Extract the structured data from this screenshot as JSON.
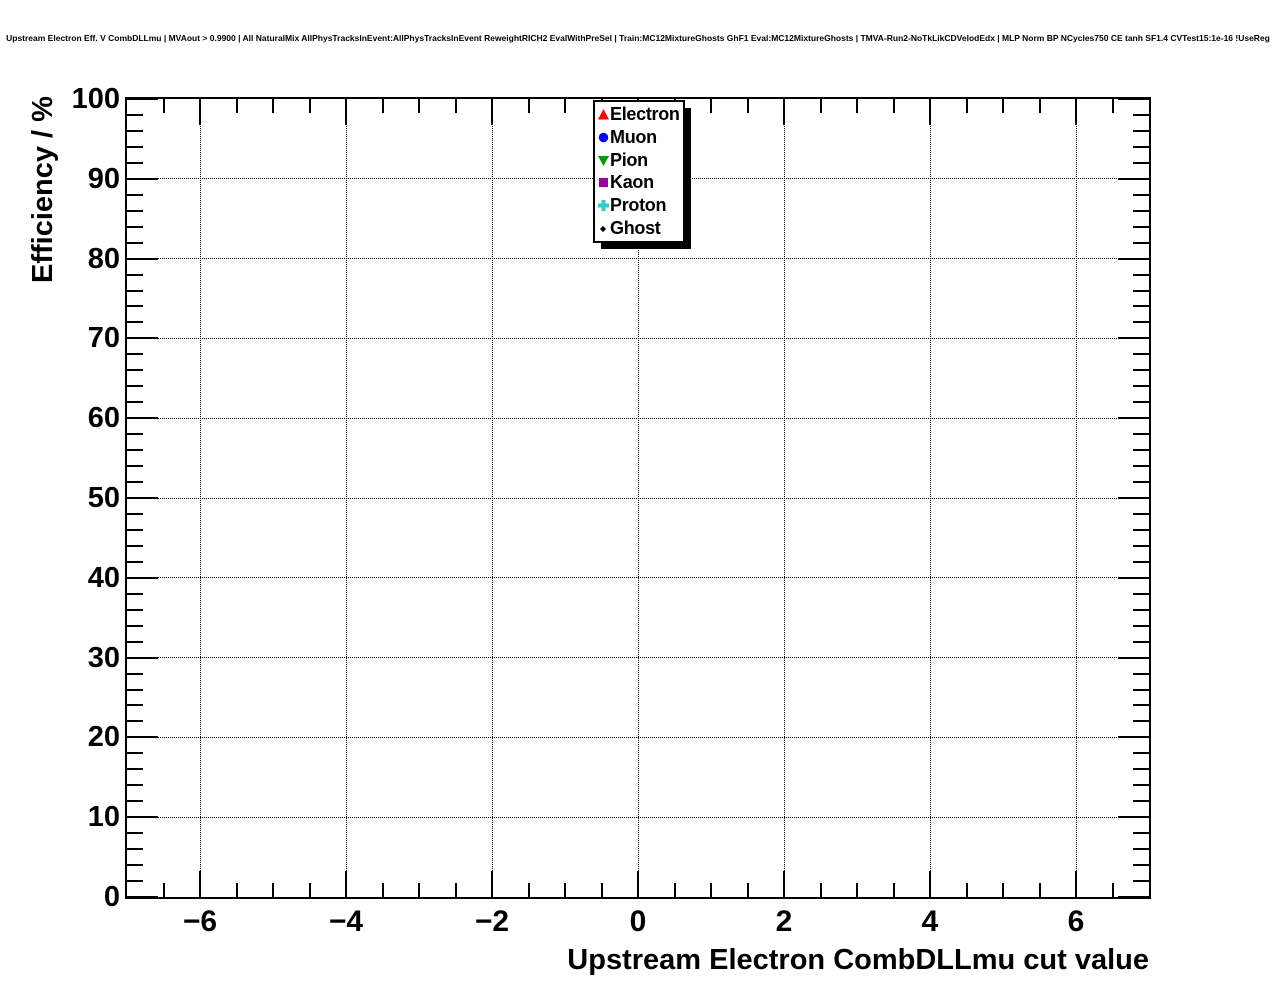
{
  "chart_data": {
    "type": "scatter",
    "title": "Upstream Electron Eff. V CombDLLmu | MVAout > 0.9900 | All NaturalMix AllPhysTracksInEvent:AllPhysTracksInEvent ReweightRICH2 EvalWithPreSel | Train:MC12MixtureGhosts GhF1 Eval:MC12MixtureGhosts | TMVA-Run2-NoTkLikCDVelodEdx | MLP Norm BP NCycles750 CE tanh SF1.4 CVTest15:1e-16 !UseReg",
    "xlabel": "Upstream Electron CombDLLmu cut value",
    "ylabel": "Efficiency / %",
    "xlim": [
      -7,
      7
    ],
    "ylim": [
      0,
      100
    ],
    "x_major_ticks": [
      -6,
      -4,
      -2,
      0,
      2,
      4,
      6
    ],
    "x_tick_labels": [
      "−6",
      "−4",
      "−2",
      "0",
      "2",
      "4",
      "6"
    ],
    "x_minor_tick_step": 0.5,
    "y_major_ticks": [
      0,
      10,
      20,
      30,
      40,
      50,
      60,
      70,
      80,
      90,
      100
    ],
    "y_tick_labels": [
      "0",
      "10",
      "20",
      "30",
      "40",
      "50",
      "60",
      "70",
      "80",
      "90",
      "100"
    ],
    "y_minor_tick_step": 2,
    "grid": "dotted lines at every major tick",
    "legend": {
      "position": "top-center",
      "entries": [
        {
          "label": "Electron",
          "marker": "triangle-up",
          "color": "#ff0000"
        },
        {
          "label": "Muon",
          "marker": "circle",
          "color": "#0000ff"
        },
        {
          "label": "Pion",
          "marker": "triangle-down",
          "color": "#009900"
        },
        {
          "label": "Kaon",
          "marker": "square",
          "color": "#990099"
        },
        {
          "label": "Proton",
          "marker": "cross",
          "color": "#33cccc"
        },
        {
          "label": "Ghost",
          "marker": "diamond",
          "color": "#000000"
        }
      ]
    },
    "series": []
  },
  "colors": {
    "background": "#ffffff",
    "axis": "#000000",
    "grid": "#000000"
  }
}
